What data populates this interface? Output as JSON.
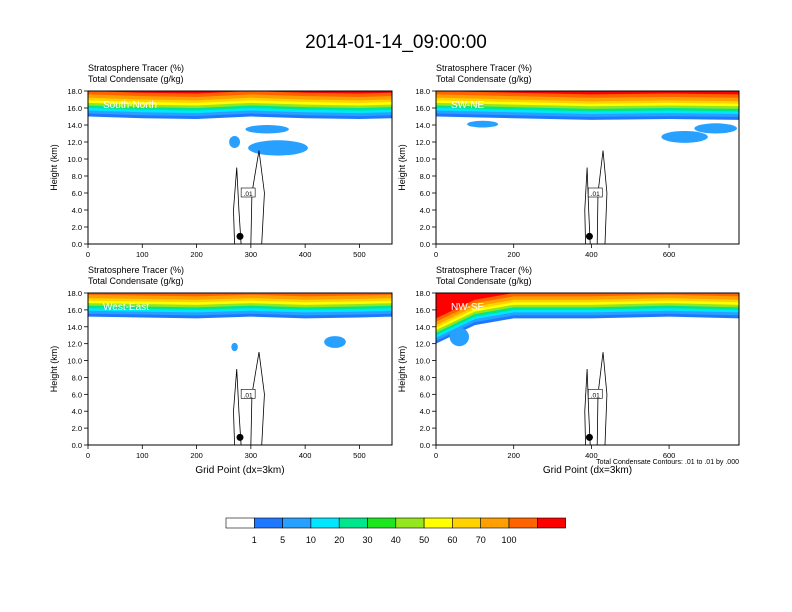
{
  "title": "2014-01-14_09:00:00",
  "panel_header": {
    "line1_name": "Stratosphere Tracer",
    "line1_unit": "(%)",
    "line2_name": "Total Condensate",
    "line2_unit": "(g/kg)"
  },
  "ylabel": "Height (km)",
  "xlabel": "Grid Point (dx=3km)",
  "contour_note": "Total Condensate Contours: .01 to .01 by .000",
  "colorbar": {
    "colors": [
      "#ffffff",
      "#1e78ff",
      "#28a0ff",
      "#00e6ff",
      "#00e68c",
      "#1ee61e",
      "#96e61e",
      "#ffff00",
      "#ffd200",
      "#ffa000",
      "#ff6400",
      "#ff0000"
    ],
    "labels": [
      "1",
      "5",
      "10",
      "20",
      "30",
      "40",
      "50",
      "60",
      "70",
      "100"
    ]
  },
  "chart_data": [
    {
      "type": "heatmap",
      "panel": "South-North",
      "label": "South-North",
      "xlim": [
        0,
        560
      ],
      "xticks": [
        0,
        100,
        200,
        300,
        400,
        500
      ],
      "ylim": [
        0,
        18
      ],
      "yticks": [
        "0.0",
        "2.0",
        "4.0",
        "6.0",
        "8.0",
        "10.0",
        "12.0",
        "14.0",
        "16.0",
        "18.0"
      ],
      "marker_x": 280,
      "contour_label": ".01",
      "tropopause_km_at": [
        [
          0,
          15.0
        ],
        [
          100,
          14.8
        ],
        [
          200,
          14.7
        ],
        [
          300,
          15.0
        ],
        [
          400,
          14.8
        ],
        [
          500,
          14.7
        ],
        [
          560,
          14.8
        ]
      ]
    },
    {
      "type": "heatmap",
      "panel": "SW-NE",
      "label": "SW-NE",
      "xlim": [
        0,
        780
      ],
      "xticks": [
        0,
        200,
        400,
        600
      ],
      "ylim": [
        0,
        18
      ],
      "yticks": [
        "0.0",
        "2.0",
        "4.0",
        "6.0",
        "8.0",
        "10.0",
        "12.0",
        "14.0",
        "16.0",
        "18.0"
      ],
      "marker_x": 395,
      "contour_label": ".01",
      "tropopause_km_at": [
        [
          0,
          15.0
        ],
        [
          200,
          14.8
        ],
        [
          400,
          14.6
        ],
        [
          600,
          14.7
        ],
        [
          780,
          14.6
        ]
      ]
    },
    {
      "type": "heatmap",
      "panel": "West-East",
      "label": "West-East",
      "xlim": [
        0,
        560
      ],
      "xticks": [
        0,
        100,
        200,
        300,
        400,
        500
      ],
      "ylim": [
        0,
        18
      ],
      "yticks": [
        "0.0",
        "2.0",
        "4.0",
        "6.0",
        "8.0",
        "10.0",
        "12.0",
        "14.0",
        "16.0",
        "18.0"
      ],
      "marker_x": 280,
      "contour_label": ".01",
      "tropopause_km_at": [
        [
          0,
          15.2
        ],
        [
          100,
          15.1
        ],
        [
          200,
          15.0
        ],
        [
          300,
          15.2
        ],
        [
          400,
          15.0
        ],
        [
          500,
          15.1
        ],
        [
          560,
          15.2
        ]
      ]
    },
    {
      "type": "heatmap",
      "panel": "NW-SE",
      "label": "NW-SE",
      "xlim": [
        0,
        780
      ],
      "xticks": [
        0,
        200,
        400,
        600
      ],
      "ylim": [
        0,
        18
      ],
      "yticks": [
        "0.0",
        "2.0",
        "4.0",
        "6.0",
        "8.0",
        "10.0",
        "12.0",
        "14.0",
        "16.0",
        "18.0"
      ],
      "marker_x": 395,
      "contour_label": ".01",
      "tropopause_km_at": [
        [
          0,
          12.0
        ],
        [
          100,
          14.2
        ],
        [
          200,
          15.0
        ],
        [
          400,
          15.0
        ],
        [
          600,
          15.2
        ],
        [
          780,
          15.0
        ]
      ]
    }
  ]
}
